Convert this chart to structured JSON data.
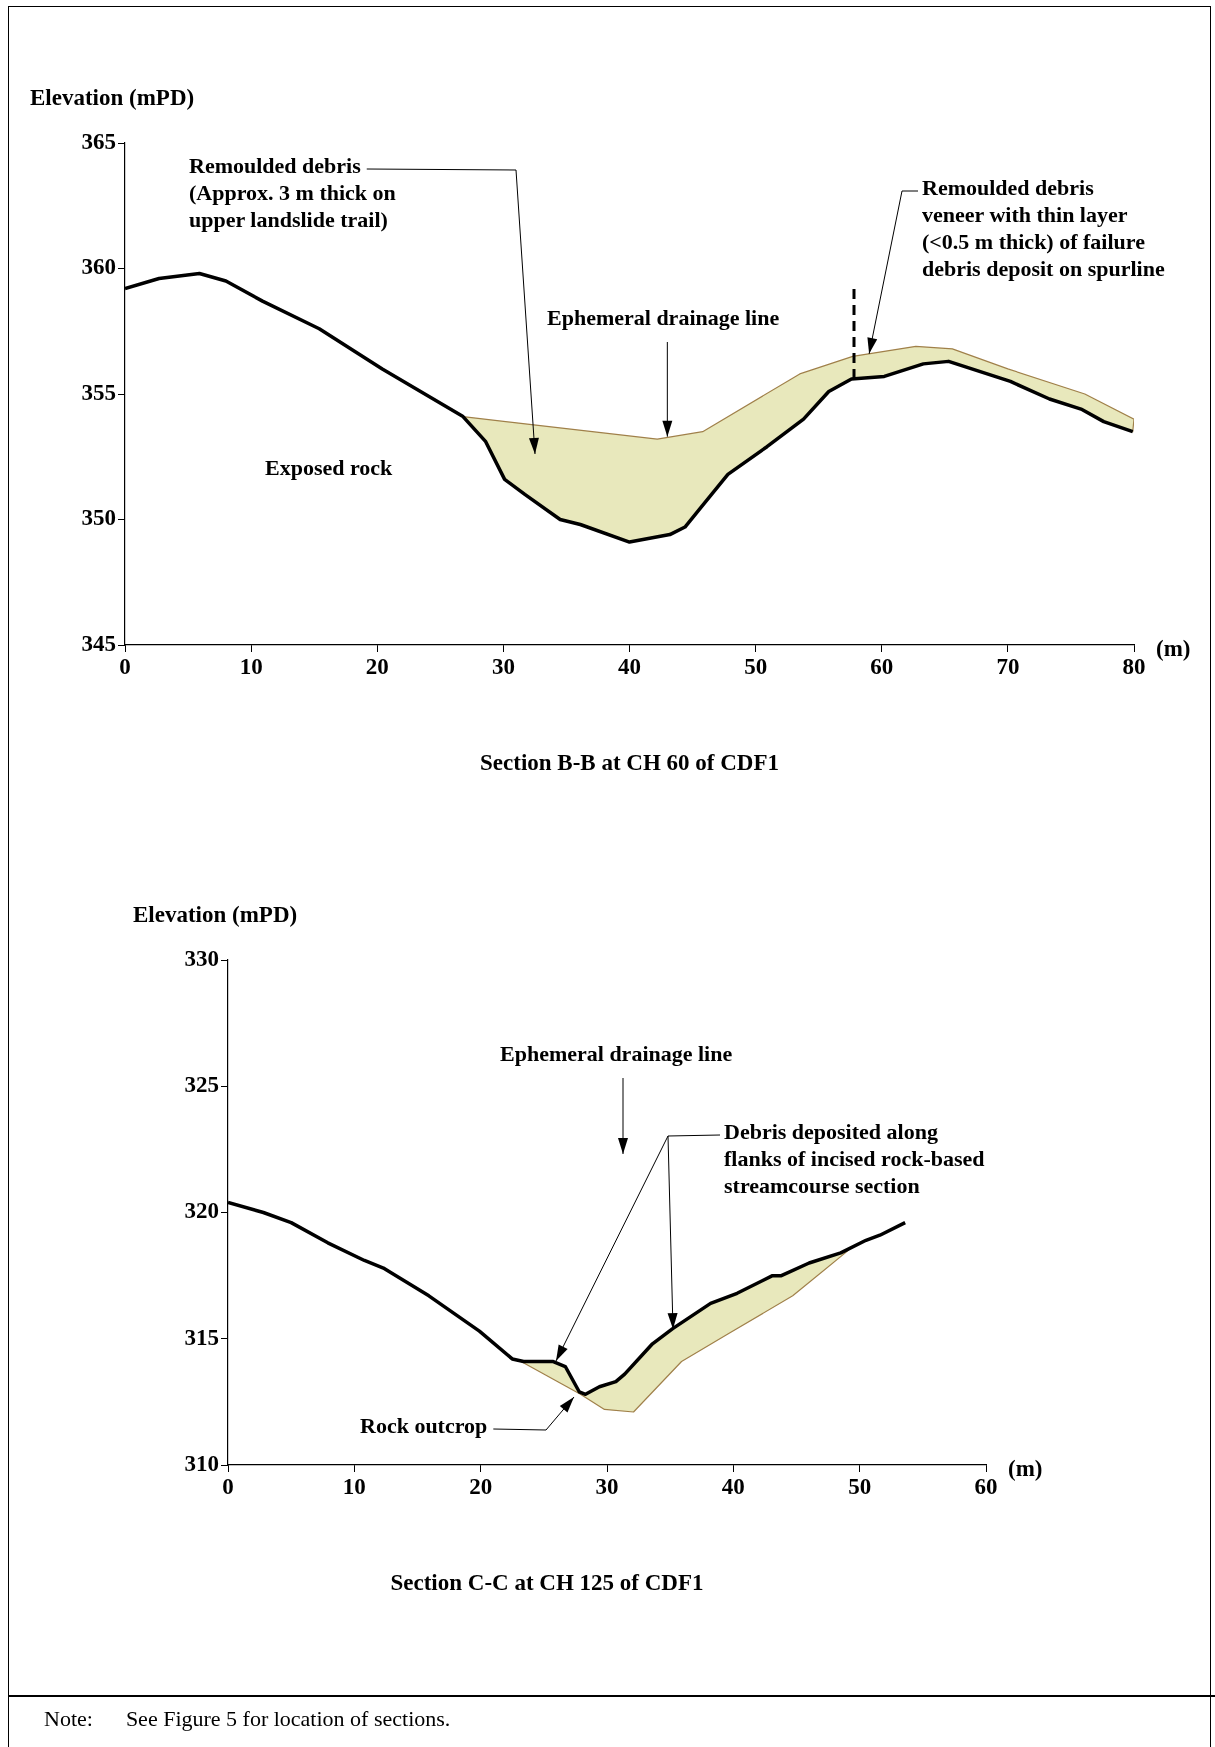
{
  "chart_data": [
    {
      "type": "line",
      "title": "Section B-B at CH 60 of CDF1",
      "ylabel": "Elevation (mPD)",
      "xlabel": "(m)",
      "xlim": [
        0,
        80
      ],
      "ylim": [
        345,
        365
      ],
      "xticks": [
        0,
        10,
        20,
        30,
        40,
        50,
        60,
        70,
        80
      ],
      "yticks": [
        345,
        350,
        355,
        360,
        365
      ],
      "grid": false,
      "legend": false,
      "marker": "none",
      "series": [
        {
          "color": "#000000",
          "x": [
            0,
            2.7,
            5.9,
            8,
            10.9,
            15.4,
            20.4,
            26.8,
            28.6,
            30.1,
            31.7,
            34.5,
            36.1,
            40,
            43.2,
            44.4,
            47.8,
            50.9,
            53.8,
            55.8,
            57.6,
            60.2,
            63.3,
            65.3,
            70.2,
            73.3,
            75.8,
            77.6,
            79.9
          ],
          "values": [
            359.2,
            359.6,
            359.8,
            359.5,
            358.7,
            357.6,
            356,
            354.1,
            353.1,
            351.6,
            351,
            350,
            349.8,
            349.1,
            349.4,
            349.7,
            351.8,
            352.9,
            354,
            355.1,
            355.6,
            355.7,
            356.2,
            356.3,
            355.5,
            354.8,
            354.4,
            353.9,
            353.5
          ]
        },
        {
          "type": "area",
          "color": "#a0804a",
          "x": [
            26.8,
            31.9,
            42.2,
            45.8,
            53.5,
            57.7,
            62.7,
            65.6,
            70,
            76.1,
            80,
            79.9,
            77.6,
            75.8,
            73.3,
            70.2,
            65.3,
            63.3,
            60.2,
            57.6,
            55.8,
            53.8,
            50.9,
            47.8,
            44.4,
            43.2,
            40,
            36.1,
            34.5,
            31.7,
            30.1,
            28.6
          ],
          "values": [
            354.1,
            353.8,
            353.2,
            353.5,
            355.8,
            356.5,
            356.9,
            356.8,
            356,
            355,
            354,
            353.5,
            353.9,
            354.4,
            354.8,
            355.5,
            356.3,
            356.2,
            355.7,
            355.6,
            355.1,
            354,
            352.9,
            351.8,
            349.7,
            349.4,
            349.1,
            349.8,
            350,
            351,
            351.6,
            353.1
          ]
        },
        {
          "color": "#000000",
          "line_style": "dashed",
          "x": [
            57.8,
            57.8
          ],
          "values": [
            355.6,
            359.2
          ]
        }
      ],
      "annotations": [
        "Remoulded debris\n(Approx. 3 m thick on\nupper landslide trail)",
        {
          "text": "Ephemeral drainage line",
          "x": 43,
          "y": 353.3
        },
        {
          "text": "Remoulded debris\nveneer with thin layer\n(<0.5 m thick) of failure\ndebris deposit on spurline",
          "x": 59,
          "y": 356.6
        },
        "Exposed rock"
      ]
    },
    {
      "type": "line",
      "title": "Section C-C at CH 125 of CDF1",
      "ylabel": "Elevation (mPD)",
      "xlabel": "(m)",
      "xlim": [
        0,
        60
      ],
      "ylim": [
        310,
        330
      ],
      "xticks": [
        0,
        10,
        20,
        30,
        40,
        50,
        60
      ],
      "yticks": [
        310,
        315,
        320,
        325,
        330
      ],
      "grid": false,
      "legend": false,
      "marker": "none",
      "series": [
        {
          "color": "#000000",
          "x": [
            0,
            2.8,
            5,
            7.9,
            10.8,
            12.3,
            15.9,
            19.9,
            22.5,
            23.4,
            25.7,
            26.7,
            27.8,
            28.3,
            29.4,
            30.7,
            31.4,
            33.6,
            35.2,
            38.2,
            40.3,
            43.1,
            43.8,
            46,
            48.5,
            50.5,
            51.6,
            53.6
          ],
          "values": [
            320.4,
            320,
            319.6,
            318.8,
            318.1,
            317.8,
            316.7,
            315.3,
            314.2,
            314.1,
            314.1,
            313.9,
            312.9,
            312.8,
            313.1,
            313.3,
            313.6,
            314.8,
            315.4,
            316.4,
            316.8,
            317.5,
            317.5,
            318,
            318.4,
            318.9,
            319.1,
            319.6
          ]
        },
        {
          "type": "area",
          "color": "#a0804a",
          "x": [
            23.2,
            27.9,
            29.8,
            32.1,
            35.9,
            39.6,
            44.7,
            49.1,
            48.5,
            46,
            43.8,
            43.1,
            40.3,
            38.2,
            35.2,
            33.6,
            31.4,
            30.7,
            29.4,
            28.3,
            27.8,
            26.7,
            25.7,
            23.4
          ],
          "values": [
            314.1,
            312.8,
            312.2,
            312.1,
            314.1,
            315.2,
            316.7,
            318.5,
            318.4,
            318,
            317.5,
            317.5,
            316.8,
            316.4,
            315.4,
            314.8,
            313.6,
            313.3,
            313.1,
            312.8,
            312.9,
            313.9,
            314.1,
            314.1
          ]
        }
      ],
      "annotations": [
        "Ephemeral drainage line",
        "Debris deposited along\nflanks of incised rock-based\nstreamcourse section",
        "Rock outcrop",
        "Note:      See Figure 5 for location of sections."
      ]
    }
  ]
}
